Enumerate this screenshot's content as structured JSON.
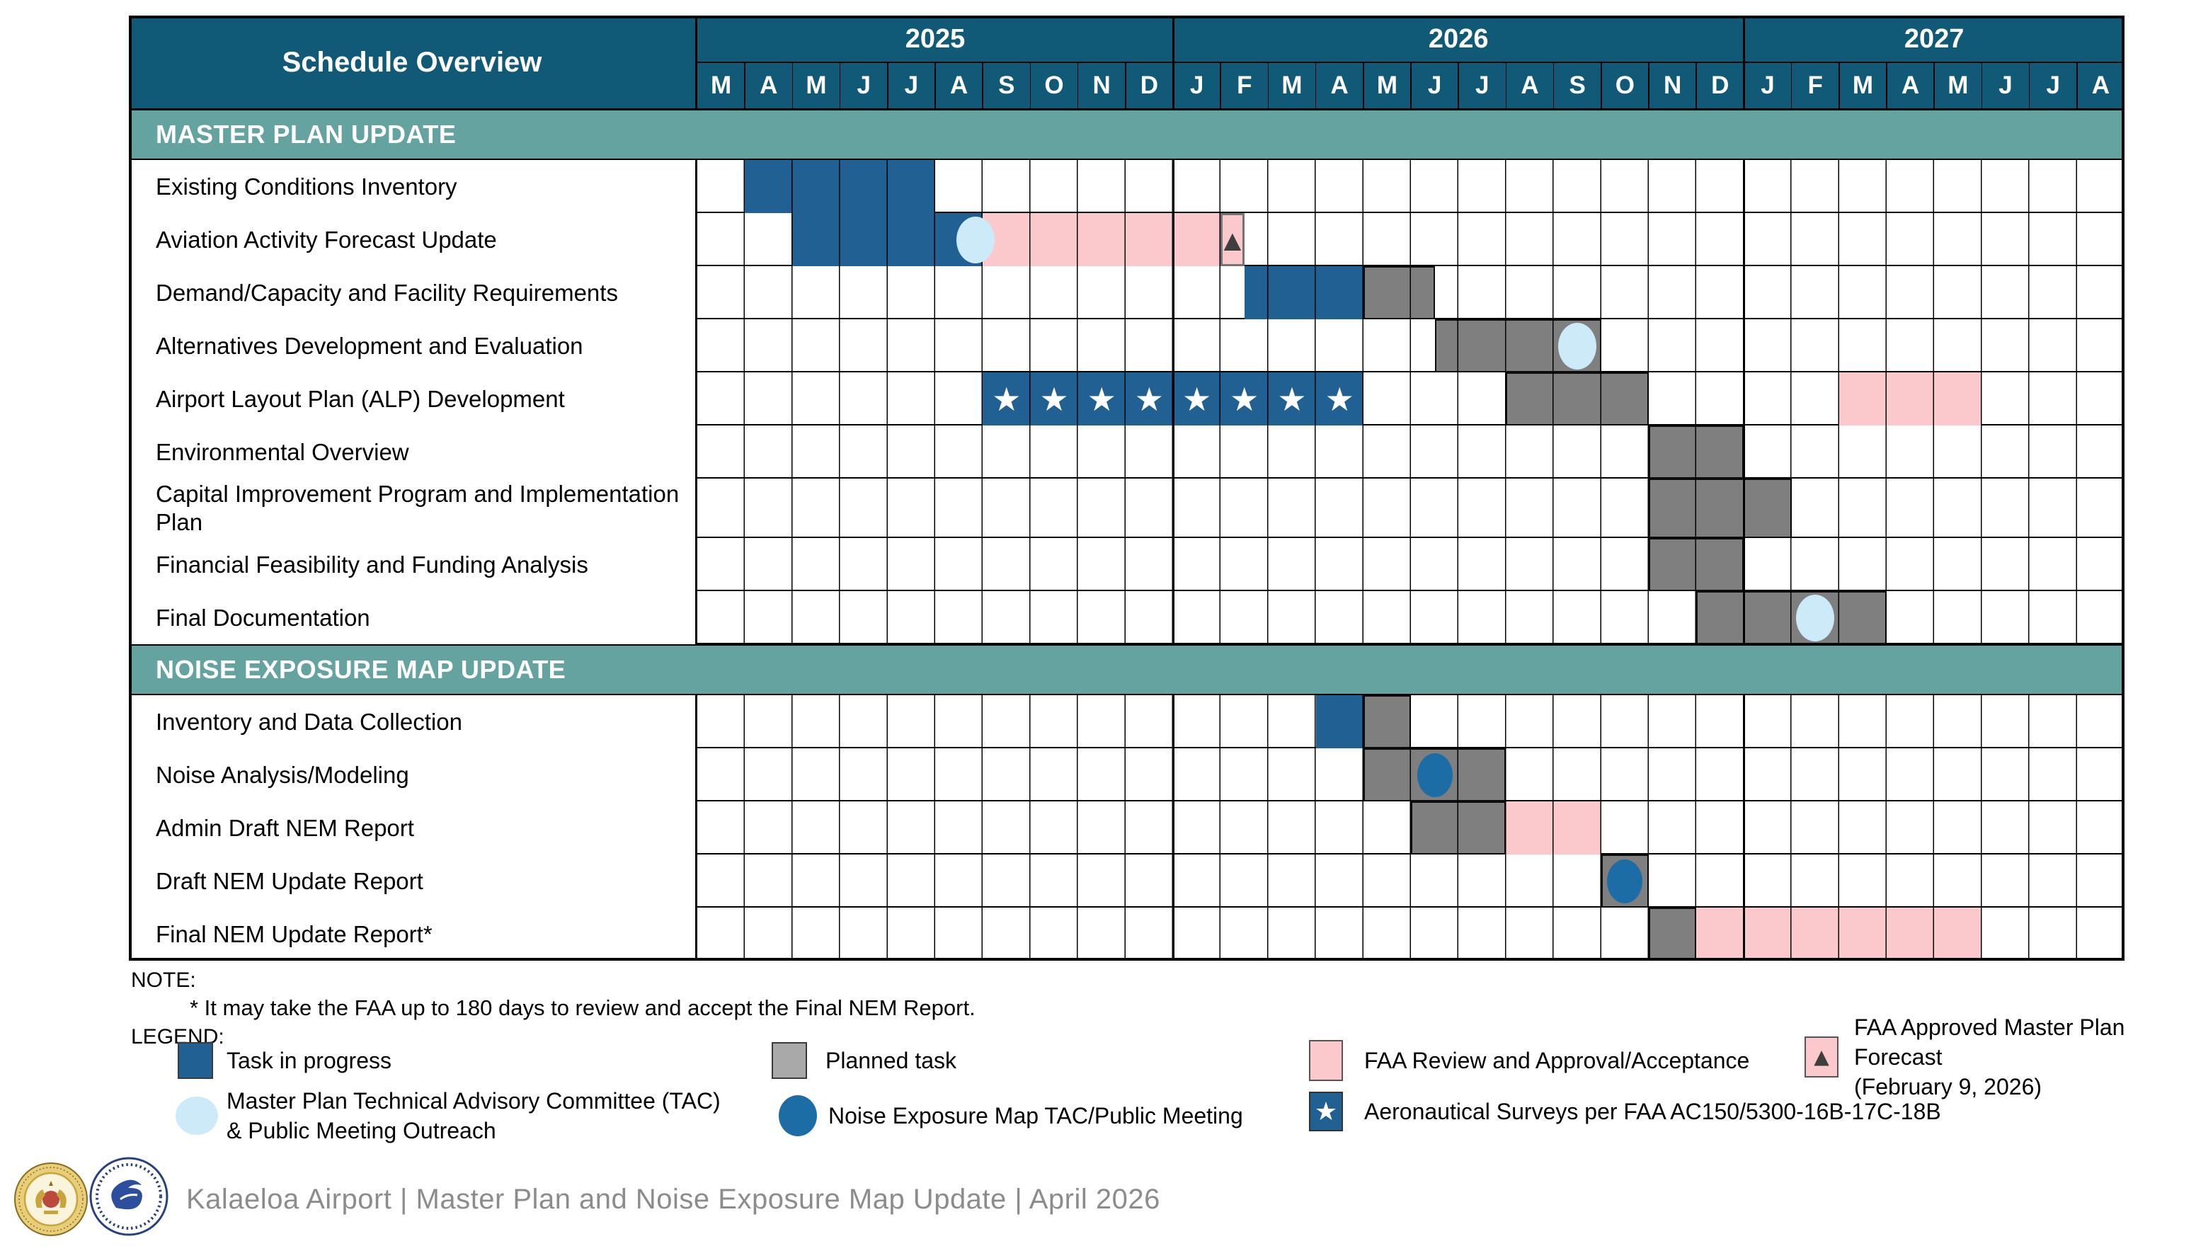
{
  "title": "Schedule Overview",
  "colors": {
    "header_bg": "#115A77",
    "section_band_bg": "#64A3A0",
    "task_in_progress": "#216093",
    "planned_task": "#7F7F7F",
    "faa_review": "#FBC8CC",
    "mp_tac_meeting": "#CDEAF8",
    "nem_tac_meeting": "#1C6CA6",
    "forecast_marker_triangle": "#3E3E3E",
    "grid_line": "#000000",
    "footer_text": "#8C8C8C"
  },
  "header": {
    "title": "Schedule Overview",
    "years": [
      {
        "label": "2025",
        "months": [
          "M",
          "A",
          "M",
          "J",
          "J",
          "A",
          "S",
          "O",
          "N",
          "D"
        ]
      },
      {
        "label": "2026",
        "months": [
          "J",
          "F",
          "M",
          "A",
          "M",
          "J",
          "J",
          "A",
          "S",
          "O",
          "N",
          "D"
        ]
      },
      {
        "label": "2027",
        "months": [
          "J",
          "F",
          "M",
          "A",
          "M",
          "J",
          "J",
          "A"
        ]
      }
    ]
  },
  "chart_data": {
    "type": "gantt",
    "title": "Schedule Overview",
    "timeline_start": "2025-03",
    "timeline_end": "2027-08",
    "unit_note": "numeric s/e/pos are months measured from 2025-03 (Mar 2025 = 0); e is end-exclusive; fractional values are half-month positions",
    "sections": [
      {
        "label": "MASTER PLAN UPDATE",
        "tasks": [
          {
            "label": "Existing Conditions Inventory",
            "segments": [
              {
                "kind": "in_progress",
                "from": "2025-04",
                "to": "2025-07",
                "s": 1,
                "e": 5
              }
            ],
            "events": []
          },
          {
            "label": "Aviation Activity Forecast Update",
            "segments": [
              {
                "kind": "in_progress",
                "from": "2025-05",
                "to": "2025-08",
                "s": 2,
                "e": 6
              },
              {
                "kind": "faa_review",
                "from": "2025-09",
                "to": "2026-02 (mid)",
                "s": 6,
                "e": 11.5
              },
              {
                "kind": "forecast_approved",
                "from": "2026-02 (early)",
                "to": "2026-02 (mid)",
                "s": 11,
                "e": 11.5
              }
            ],
            "events": [
              {
                "kind": "mp_tac_meeting",
                "month": "2025-08",
                "pos": 5.85
              }
            ]
          },
          {
            "label": "Demand/Capacity and Facility Requirements",
            "segments": [
              {
                "kind": "in_progress",
                "from": "2026-02 (mid)",
                "to": "2026-04",
                "s": 11.5,
                "e": 14
              },
              {
                "kind": "planned",
                "from": "2026-05",
                "to": "2026-06 (mid)",
                "s": 14,
                "e": 15.5
              }
            ],
            "events": []
          },
          {
            "label": "Alternatives Development and Evaluation",
            "segments": [
              {
                "kind": "planned",
                "from": "2026-06 (mid)",
                "to": "2026-09",
                "s": 15.5,
                "e": 19
              }
            ],
            "events": [
              {
                "kind": "mp_tac_meeting",
                "month": "2026-09",
                "pos": 18.5
              }
            ]
          },
          {
            "label": "Airport Layout Plan (ALP) Development",
            "segments": [
              {
                "kind": "aero_surveys",
                "from": "2025-09",
                "to": "2026-04",
                "s": 6,
                "e": 14
              },
              {
                "kind": "planned",
                "from": "2026-08",
                "to": "2026-10",
                "s": 17,
                "e": 20
              },
              {
                "kind": "faa_review",
                "from": "2027-03",
                "to": "2027-05",
                "s": 24,
                "e": 27
              }
            ],
            "events": []
          },
          {
            "label": "Environmental Overview",
            "segments": [
              {
                "kind": "planned",
                "from": "2026-11",
                "to": "2026-12",
                "s": 20,
                "e": 22
              }
            ],
            "events": []
          },
          {
            "label": "Capital Improvement Program and Implementation Plan",
            "tall": true,
            "segments": [
              {
                "kind": "planned",
                "from": "2026-11",
                "to": "2027-01",
                "s": 20,
                "e": 23
              }
            ],
            "events": []
          },
          {
            "label": "Financial Feasibility and Funding Analysis",
            "segments": [
              {
                "kind": "planned",
                "from": "2026-11",
                "to": "2026-12",
                "s": 20,
                "e": 22
              }
            ],
            "events": []
          },
          {
            "label": "Final Documentation",
            "segments": [
              {
                "kind": "planned",
                "from": "2026-12",
                "to": "2027-03",
                "s": 21,
                "e": 25
              }
            ],
            "events": [
              {
                "kind": "mp_tac_meeting",
                "month": "2027-02",
                "pos": 23.5
              }
            ]
          }
        ]
      },
      {
        "label": "NOISE EXPOSURE MAP UPDATE",
        "tasks": [
          {
            "label": "Inventory and Data Collection",
            "segments": [
              {
                "kind": "in_progress",
                "from": "2026-04",
                "to": "2026-04",
                "s": 13,
                "e": 14
              },
              {
                "kind": "planned",
                "from": "2026-05",
                "to": "2026-05",
                "s": 14,
                "e": 15
              }
            ],
            "events": []
          },
          {
            "label": "Noise Analysis/Modeling",
            "segments": [
              {
                "kind": "planned",
                "from": "2026-05",
                "to": "2026-07",
                "s": 14,
                "e": 17
              }
            ],
            "events": [
              {
                "kind": "nem_tac_meeting",
                "month": "2026-06",
                "pos": 15.5
              }
            ]
          },
          {
            "label": "Admin Draft NEM Report",
            "segments": [
              {
                "kind": "planned",
                "from": "2026-06",
                "to": "2026-07",
                "s": 15,
                "e": 17
              },
              {
                "kind": "faa_review",
                "from": "2026-08",
                "to": "2026-09",
                "s": 17,
                "e": 19
              }
            ],
            "events": []
          },
          {
            "label": "Draft NEM Update Report",
            "segments": [
              {
                "kind": "planned",
                "from": "2026-10",
                "to": "2026-10",
                "s": 19,
                "e": 20
              }
            ],
            "events": [
              {
                "kind": "nem_tac_meeting",
                "month": "2026-10",
                "pos": 19.5
              }
            ]
          },
          {
            "label": "Final NEM Update Report*",
            "segments": [
              {
                "kind": "planned",
                "from": "2026-11",
                "to": "2026-11",
                "s": 20,
                "e": 21
              },
              {
                "kind": "faa_review",
                "from": "2026-12",
                "to": "2027-05",
                "s": 21,
                "e": 27
              }
            ],
            "events": []
          }
        ]
      }
    ]
  },
  "note": {
    "heading": "NOTE:",
    "text": "* It may take the FAA up to 180 days to review and accept the Final NEM Report."
  },
  "legend": {
    "heading": "LEGEND:",
    "items": [
      {
        "kind": "in_progress",
        "lines": [
          "Task in progress"
        ]
      },
      {
        "kind": "planned",
        "lines": [
          "Planned task"
        ]
      },
      {
        "kind": "faa_review",
        "lines": [
          "FAA Review and Approval/Acceptance"
        ]
      },
      {
        "kind": "forecast_approved",
        "lines": [
          "FAA Approved Master Plan Forecast",
          "(February 9, 2026)"
        ]
      },
      {
        "kind": "mp_tac_meeting",
        "lines": [
          "Master Plan Technical Advisory Committee (TAC)",
          "& Public Meeting Outreach"
        ]
      },
      {
        "kind": "nem_tac_meeting",
        "lines": [
          "Noise Exposure Map TAC/Public Meeting"
        ]
      },
      {
        "kind": "aero_surveys",
        "lines": [
          "Aeronautical Surveys per FAA AC150/5300-16B-17C-18B"
        ]
      }
    ],
    "marker_glyphs": {
      "forecast_triangle": "▲",
      "survey_star": "★"
    }
  },
  "footer": {
    "text": "Kalaeloa Airport | Master Plan and Noise Exposure Map Update | April 2026",
    "logos": [
      "hawaii-state-seal",
      "hawaii-dot-logo"
    ]
  }
}
